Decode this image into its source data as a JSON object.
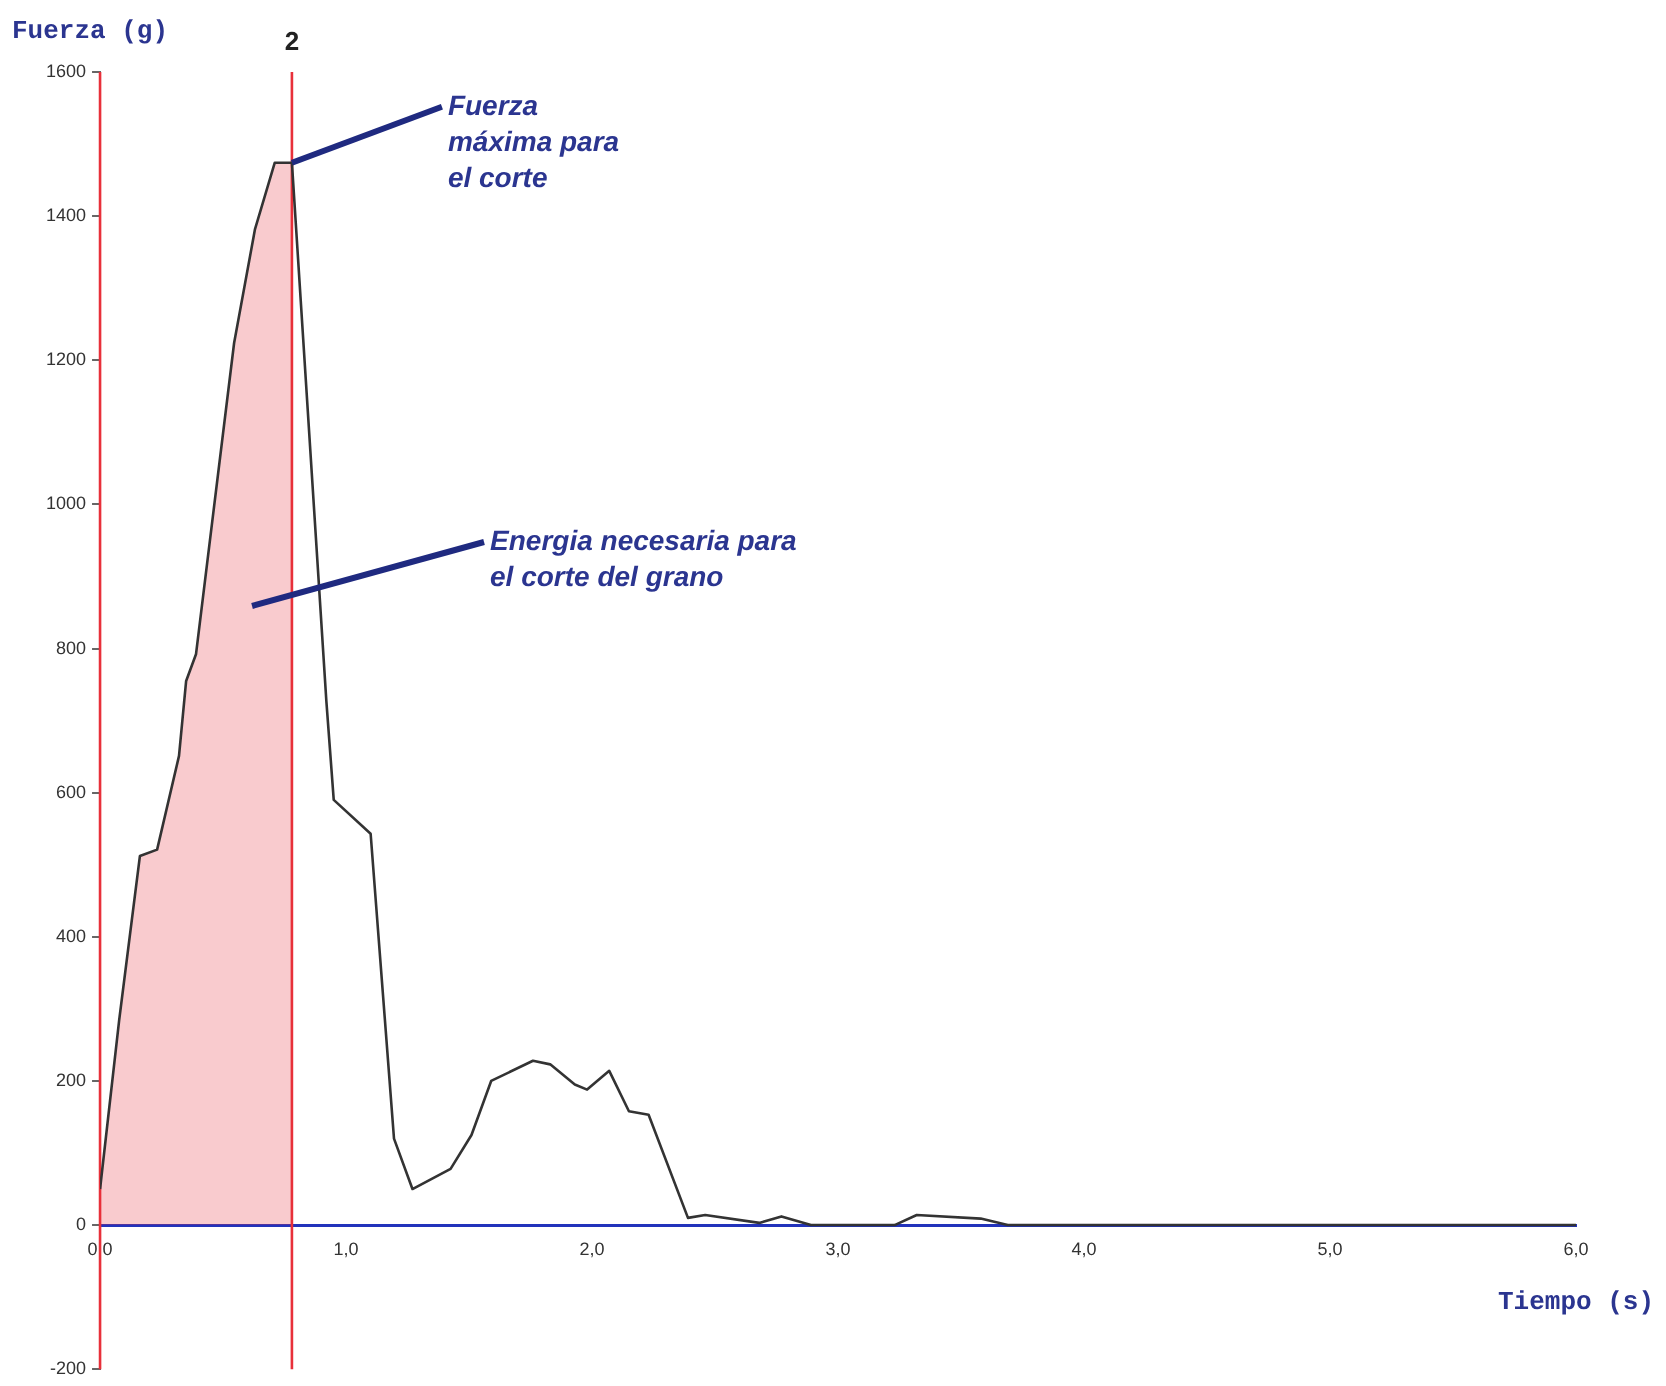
{
  "chart_data": {
    "type": "line",
    "xlabel": "Tiempo (s)",
    "ylabel": "Fuerza (g)",
    "series": [
      {
        "color": "#333333",
        "x": [
          0,
          0.078,
          0.162,
          0.232,
          0.321,
          0.35,
          0.39,
          0.545,
          0.63,
          0.71,
          0.78,
          0.92,
          0.95,
          1.1,
          1.195,
          1.27,
          1.425,
          1.51,
          1.59,
          1.76,
          1.83,
          1.93,
          1.98,
          2.07,
          2.15,
          2.23,
          2.39,
          2.46,
          2.68,
          2.77,
          2.89,
          3.23,
          3.32,
          3.58,
          3.69,
          6.0
        ],
        "values": [
          50,
          285,
          512,
          521,
          651,
          755,
          792,
          1224,
          1382,
          1474,
          1474,
          727,
          590,
          543,
          120,
          50,
          78,
          125,
          200,
          228,
          223,
          195,
          188,
          214,
          158,
          153,
          10,
          14,
          3,
          12,
          0,
          0,
          14,
          9,
          0,
          0
        ]
      },
      {
        "type": "area",
        "color": "#e8303a",
        "x": [
          0,
          0.078,
          0.162,
          0.232,
          0.321,
          0.35,
          0.39,
          0.545,
          0.63,
          0.71,
          0.78
        ],
        "values": [
          50,
          285,
          512,
          521,
          651,
          755,
          792,
          1224,
          1382,
          1474,
          1474
        ]
      }
    ],
    "xlim": [
      0,
      6
    ],
    "xticks": [
      {
        "value": 0,
        "label": "0,0"
      },
      {
        "value": 1,
        "label": "1,0"
      },
      {
        "value": 2,
        "label": "2,0"
      },
      {
        "value": 3,
        "label": "3,0"
      },
      {
        "value": 4,
        "label": "4,0"
      },
      {
        "value": 5,
        "label": "5,0"
      },
      {
        "value": 6,
        "label": "6,0"
      }
    ],
    "ylim": [
      -200,
      1600
    ],
    "yticks": [
      -200,
      0,
      200,
      400,
      600,
      800,
      1000,
      1200,
      1400,
      1600
    ],
    "grid": false,
    "legend": false,
    "marker": "none",
    "line_style": "solid",
    "ref_lines": [
      {
        "axis": "x",
        "value": 0,
        "color": "#e8303a"
      },
      {
        "axis": "x",
        "value": 0.78,
        "color": "#e8303a"
      }
    ],
    "annotations": [
      {
        "text": "Fuerza máxima para el corte",
        "x": 0.78,
        "y": 1474
      },
      "Energia necesaria para el corte del grano",
      "2"
    ]
  }
}
